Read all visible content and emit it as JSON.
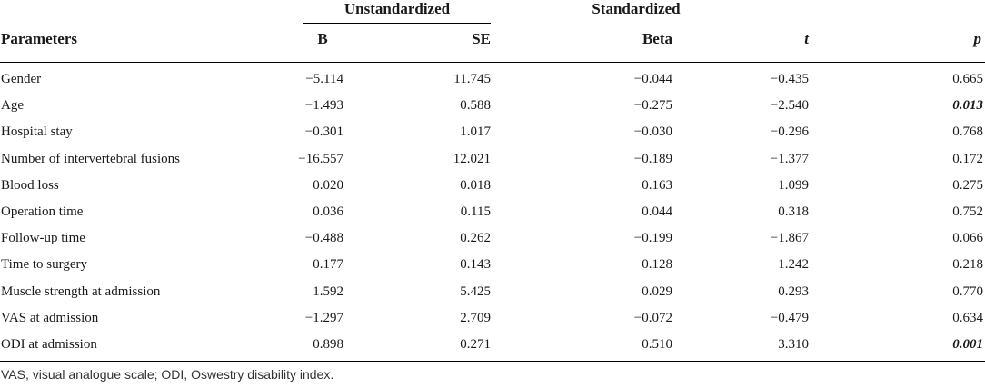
{
  "table": {
    "group_headers": {
      "unstandardized": "Unstandardized",
      "standardized": "Standardized"
    },
    "columns": {
      "parameters": "Parameters",
      "b": "B",
      "se": "SE",
      "beta": "Beta",
      "t": "t",
      "p": "p"
    },
    "rows": [
      {
        "param": "Gender",
        "b": "−5.114",
        "se": "11.745",
        "beta": "−0.044",
        "t": "−0.435",
        "p": "0.665",
        "significant": false
      },
      {
        "param": "Age",
        "b": "−1.493",
        "se": "0.588",
        "beta": "−0.275",
        "t": "−2.540",
        "p": "0.013",
        "significant": true
      },
      {
        "param": "Hospital stay",
        "b": "−0.301",
        "se": "1.017",
        "beta": "−0.030",
        "t": "−0.296",
        "p": "0.768",
        "significant": false
      },
      {
        "param": "Number of intervertebral fusions",
        "b": "−16.557",
        "se": "12.021",
        "beta": "−0.189",
        "t": "−1.377",
        "p": "0.172",
        "significant": false
      },
      {
        "param": "Blood loss",
        "b": "0.020",
        "se": "0.018",
        "beta": "0.163",
        "t": "1.099",
        "p": "0.275",
        "significant": false
      },
      {
        "param": "Operation time",
        "b": "0.036",
        "se": "0.115",
        "beta": "0.044",
        "t": "0.318",
        "p": "0.752",
        "significant": false
      },
      {
        "param": "Follow-up time",
        "b": "−0.488",
        "se": "0.262",
        "beta": "−0.199",
        "t": "−1.867",
        "p": "0.066",
        "significant": false
      },
      {
        "param": "Time to surgery",
        "b": "0.177",
        "se": "0.143",
        "beta": "0.128",
        "t": "1.242",
        "p": "0.218",
        "significant": false
      },
      {
        "param": "Muscle strength at admission",
        "b": "1.592",
        "se": "5.425",
        "beta": "0.029",
        "t": "0.293",
        "p": "0.770",
        "significant": false
      },
      {
        "param": "VAS at admission",
        "b": "−1.297",
        "se": "2.709",
        "beta": "−0.072",
        "t": "−0.479",
        "p": "0.634",
        "significant": false
      },
      {
        "param": "ODI at admission",
        "b": "0.898",
        "se": "0.271",
        "beta": "0.510",
        "t": "3.310",
        "p": "0.001",
        "significant": true
      }
    ]
  },
  "footnote": "VAS, visual analogue scale; ODI, Oswestry disability index."
}
